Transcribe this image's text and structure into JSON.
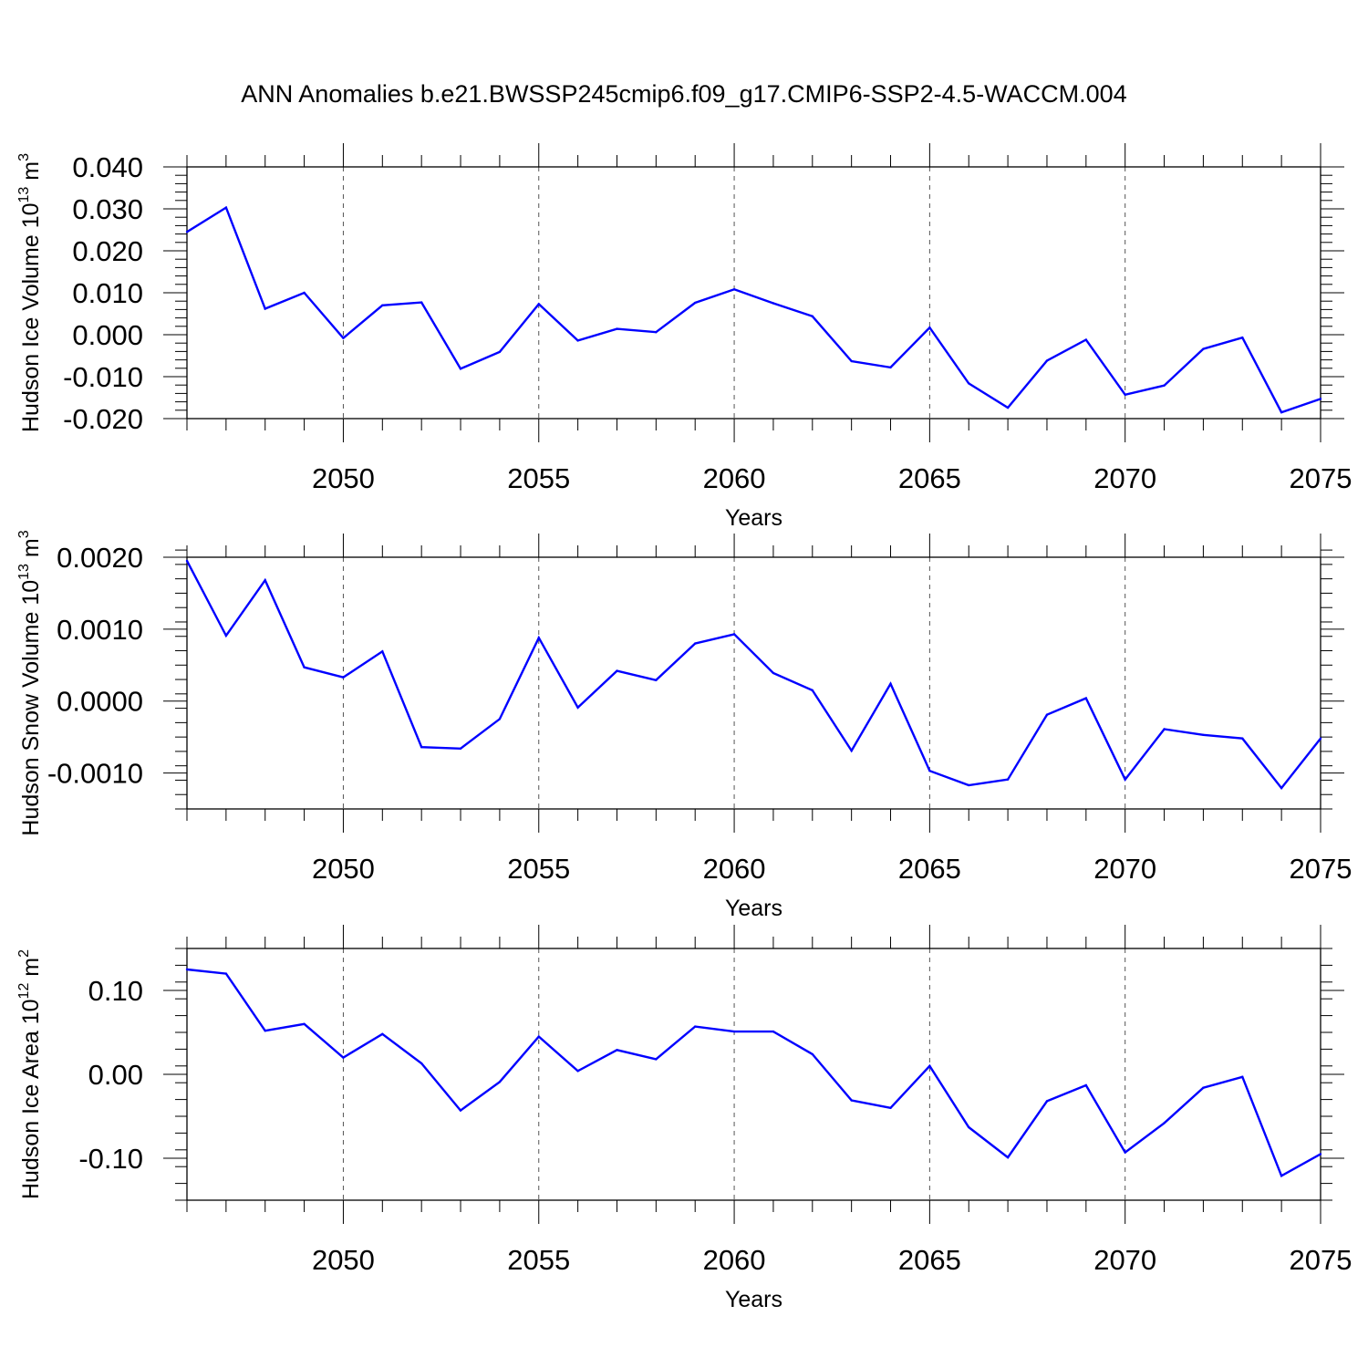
{
  "title": "ANN Anomalies b.e21.BWSSP245cmip6.f09_g17.CMIP6-SSP2-4.5-WACCM.004",
  "colors": {
    "series": "#0000ff",
    "axes": "#000000",
    "grid": "#555555"
  },
  "chart_data": [
    {
      "type": "line",
      "ylabel": "Hudson Ice Volume 10",
      "ylabel_exp": "13",
      "ylabel_unit": " m",
      "ylabel_unit_exp": "3",
      "xlabel": "Years",
      "xlim": [
        2046,
        2075
      ],
      "ylim": [
        -0.02,
        0.04
      ],
      "yticks": [
        -0.02,
        -0.01,
        0.0,
        0.01,
        0.02,
        0.03,
        0.04
      ],
      "ytick_labels": [
        "-0.020",
        "-0.010",
        "0.000",
        "0.010",
        "0.020",
        "0.030",
        "0.040"
      ],
      "y_minor_step": 0.002,
      "xticks": [
        2050,
        2055,
        2060,
        2065,
        2070,
        2075
      ],
      "xtick_labels": [
        "2050",
        "2055",
        "2060",
        "2065",
        "2070",
        "2075"
      ],
      "x": [
        2046,
        2047,
        2048,
        2049,
        2050,
        2051,
        2052,
        2053,
        2054,
        2055,
        2056,
        2057,
        2058,
        2059,
        2060,
        2061,
        2062,
        2063,
        2064,
        2065,
        2066,
        2067,
        2068,
        2069,
        2070,
        2071,
        2072,
        2073,
        2074,
        2075
      ],
      "series": [
        {
          "name": "Hudson Ice Volume",
          "values": [
            0.0245,
            0.0303,
            0.0062,
            0.01,
            -0.0008,
            0.007,
            0.0077,
            -0.0081,
            -0.0041,
            0.0073,
            -0.0014,
            0.0014,
            0.0006,
            0.0076,
            0.0108,
            0.0075,
            0.0044,
            -0.0063,
            -0.0078,
            0.0017,
            -0.0116,
            -0.0174,
            -0.0062,
            -0.0012,
            -0.0143,
            -0.0121,
            -0.0034,
            -0.0007,
            -0.0185,
            -0.0153
          ]
        }
      ]
    },
    {
      "type": "line",
      "ylabel": "Hudson Snow Volume 10",
      "ylabel_exp": "13",
      "ylabel_unit": " m",
      "ylabel_unit_exp": "3",
      "xlabel": "Years",
      "xlim": [
        2046,
        2075
      ],
      "ylim": [
        -0.0015,
        0.002
      ],
      "yticks": [
        -0.001,
        0.0,
        0.001,
        0.002
      ],
      "ytick_labels": [
        "-0.0010",
        "0.0000",
        "0.0010",
        "0.0020"
      ],
      "y_minor_step": 0.0002,
      "xticks": [
        2050,
        2055,
        2060,
        2065,
        2070,
        2075
      ],
      "xtick_labels": [
        "2050",
        "2055",
        "2060",
        "2065",
        "2070",
        "2075"
      ],
      "x": [
        2046,
        2047,
        2048,
        2049,
        2050,
        2051,
        2052,
        2053,
        2054,
        2055,
        2056,
        2057,
        2058,
        2059,
        2060,
        2061,
        2062,
        2063,
        2064,
        2065,
        2066,
        2067,
        2068,
        2069,
        2070,
        2071,
        2072,
        2073,
        2074,
        2075
      ],
      "series": [
        {
          "name": "Hudson Snow Volume",
          "values": [
            0.00195,
            0.00091,
            0.00168,
            0.00047,
            0.00033,
            0.00069,
            -0.00064,
            -0.00066,
            -0.00025,
            0.00088,
            -9e-05,
            0.00042,
            0.00029,
            0.0008,
            0.00093,
            0.00039,
            0.00015,
            -0.00069,
            0.00024,
            -0.00097,
            -0.00117,
            -0.00109,
            -0.00019,
            4e-05,
            -0.00109,
            -0.00039,
            -0.00047,
            -0.00052,
            -0.00121,
            -0.00052
          ]
        }
      ]
    },
    {
      "type": "line",
      "ylabel": "Hudson Ice Area 10",
      "ylabel_exp": "12",
      "ylabel_unit": " m",
      "ylabel_unit_exp": "2",
      "xlabel": "Years",
      "xlim": [
        2046,
        2075
      ],
      "ylim": [
        -0.15,
        0.15
      ],
      "yticks": [
        -0.1,
        0.0,
        0.1
      ],
      "ytick_labels": [
        "-0.10",
        "0.00",
        "0.10"
      ],
      "y_minor_step": 0.02,
      "xticks": [
        2050,
        2055,
        2060,
        2065,
        2070,
        2075
      ],
      "xtick_labels": [
        "2050",
        "2055",
        "2060",
        "2065",
        "2070",
        "2075"
      ],
      "x": [
        2046,
        2047,
        2048,
        2049,
        2050,
        2051,
        2052,
        2053,
        2054,
        2055,
        2056,
        2057,
        2058,
        2059,
        2060,
        2061,
        2062,
        2063,
        2064,
        2065,
        2066,
        2067,
        2068,
        2069,
        2070,
        2071,
        2072,
        2073,
        2074,
        2075
      ],
      "series": [
        {
          "name": "Hudson Ice Area",
          "values": [
            0.125,
            0.12,
            0.052,
            0.06,
            0.02,
            0.048,
            0.013,
            -0.043,
            -0.009,
            0.045,
            0.004,
            0.029,
            0.018,
            0.057,
            0.051,
            0.051,
            0.024,
            -0.031,
            -0.04,
            0.01,
            -0.063,
            -0.099,
            -0.032,
            -0.013,
            -0.093,
            -0.058,
            -0.016,
            -0.003,
            -0.121,
            -0.095
          ]
        }
      ]
    }
  ]
}
